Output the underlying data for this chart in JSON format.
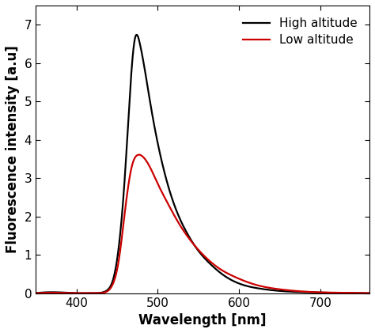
{
  "xlabel": "Wavelength [nm]",
  "ylabel": "Fluorescence intensity [a.u]",
  "xlim": [
    350,
    760
  ],
  "ylim": [
    0,
    7.5
  ],
  "yticks": [
    0,
    1,
    2,
    3,
    4,
    5,
    6,
    7
  ],
  "xticks": [
    400,
    500,
    600,
    700
  ],
  "high_altitude_color": "#000000",
  "low_altitude_color": "#cc0000",
  "high_altitude_label": "High altitude",
  "low_altitude_label": "Low altitude",
  "line_width": 1.6,
  "background_color": "#ffffff",
  "legend_fontsize": 11,
  "axis_fontsize": 12,
  "tick_fontsize": 11,
  "high_altitude_knots_x": [
    350,
    400,
    425,
    432,
    438,
    445,
    452,
    460,
    467,
    472,
    478,
    485,
    492,
    500,
    510,
    522,
    535,
    550,
    565,
    580,
    600,
    625,
    655,
    690,
    730,
    760
  ],
  "high_altitude_knots_y": [
    0.0,
    0.0,
    0.0,
    0.02,
    0.08,
    0.35,
    1.2,
    3.2,
    5.6,
    6.65,
    6.5,
    5.7,
    4.8,
    3.9,
    3.0,
    2.2,
    1.6,
    1.1,
    0.75,
    0.48,
    0.25,
    0.12,
    0.05,
    0.02,
    0.005,
    0.0
  ],
  "low_altitude_knots_x": [
    350,
    400,
    425,
    432,
    438,
    445,
    452,
    460,
    468,
    475,
    482,
    490,
    500,
    512,
    525,
    540,
    558,
    575,
    595,
    620,
    650,
    690,
    730,
    760
  ],
  "low_altitude_knots_y": [
    0.0,
    0.0,
    0.0,
    0.01,
    0.05,
    0.25,
    0.85,
    2.2,
    3.3,
    3.6,
    3.55,
    3.3,
    2.85,
    2.35,
    1.85,
    1.38,
    0.95,
    0.65,
    0.42,
    0.22,
    0.1,
    0.03,
    0.01,
    0.0
  ]
}
